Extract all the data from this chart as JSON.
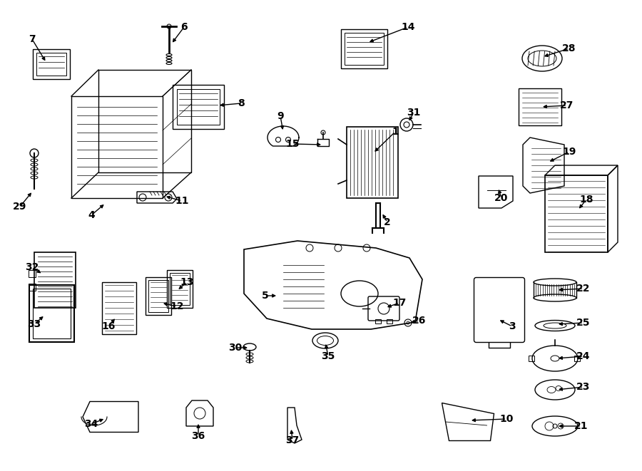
{
  "background_color": "#ffffff",
  "line_color": "#000000",
  "fig_width": 9.0,
  "fig_height": 6.61,
  "dpi": 100,
  "label_positions": {
    "7": [
      45,
      55,
      65,
      88
    ],
    "6": [
      258,
      38,
      240,
      62
    ],
    "8": [
      338,
      145,
      305,
      148
    ],
    "9": [
      393,
      163,
      397,
      185
    ],
    "15": [
      410,
      202,
      453,
      203
    ],
    "14": [
      572,
      38,
      515,
      60
    ],
    "31": [
      580,
      158,
      572,
      172
    ],
    "1": [
      554,
      185,
      523,
      215
    ],
    "2": [
      543,
      312,
      535,
      298
    ],
    "29": [
      28,
      290,
      46,
      268
    ],
    "4": [
      128,
      302,
      148,
      285
    ],
    "11": [
      255,
      282,
      230,
      275
    ],
    "19": [
      798,
      213,
      768,
      228
    ],
    "20": [
      703,
      278,
      698,
      263
    ],
    "28": [
      798,
      68,
      760,
      80
    ],
    "27": [
      795,
      148,
      758,
      150
    ],
    "18": [
      822,
      280,
      810,
      295
    ],
    "32": [
      45,
      375,
      60,
      385
    ],
    "33": [
      48,
      455,
      63,
      442
    ],
    "16": [
      152,
      458,
      163,
      445
    ],
    "13": [
      262,
      396,
      248,
      408
    ],
    "12": [
      248,
      430,
      226,
      425
    ],
    "5": [
      372,
      415,
      390,
      415
    ],
    "17": [
      560,
      425,
      540,
      432
    ],
    "26": [
      588,
      450,
      573,
      453
    ],
    "3": [
      718,
      458,
      698,
      448
    ],
    "22": [
      818,
      405,
      780,
      407
    ],
    "25": [
      818,
      453,
      780,
      455
    ],
    "24": [
      818,
      500,
      780,
      503
    ],
    "23": [
      818,
      543,
      780,
      547
    ],
    "21": [
      815,
      598,
      780,
      598
    ],
    "30": [
      330,
      488,
      350,
      488
    ],
    "35": [
      460,
      500,
      456,
      480
    ],
    "34": [
      128,
      595,
      148,
      587
    ],
    "36": [
      278,
      612,
      278,
      592
    ],
    "37": [
      410,
      618,
      408,
      600
    ],
    "10": [
      710,
      588,
      658,
      590
    ]
  }
}
